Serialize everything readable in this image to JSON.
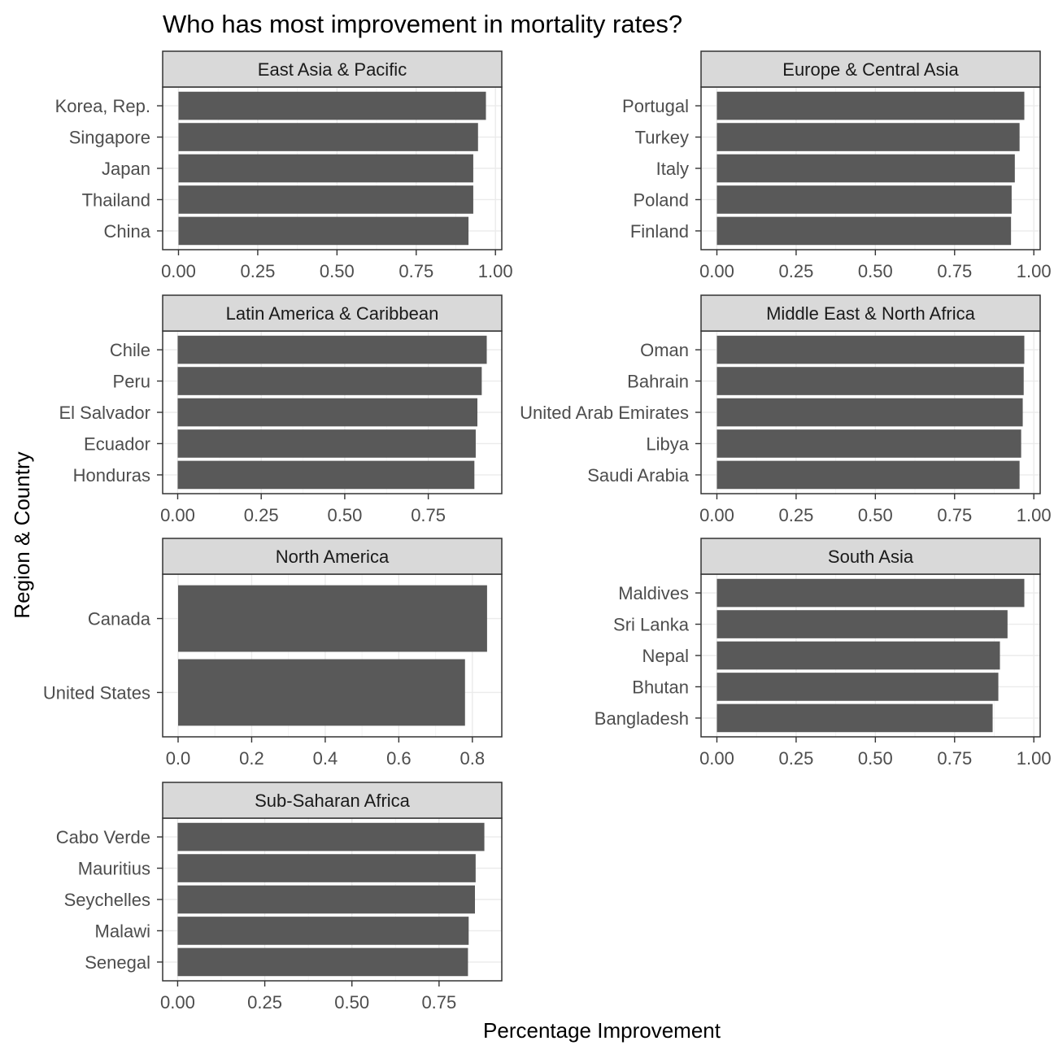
{
  "chart_data": {
    "type": "bar",
    "orientation": "horizontal",
    "title": "Who has most improvement in mortality rates?",
    "xlabel": "Percentage Improvement",
    "ylabel": "Region & Country",
    "grid": true,
    "facets": [
      {
        "name": "East Asia & Pacific",
        "categories": [
          "Korea, Rep.",
          "Singapore",
          "Japan",
          "Thailand",
          "China"
        ],
        "values": [
          0.97,
          0.945,
          0.93,
          0.93,
          0.915
        ],
        "xlim": [
          -0.05,
          1.02
        ],
        "xticks": [
          0,
          0.25,
          0.5,
          0.75,
          1.0
        ],
        "xtick_labels": [
          "0.00",
          "0.25",
          "0.50",
          "0.75",
          "1.00"
        ]
      },
      {
        "name": "Europe & Central Asia",
        "categories": [
          "Portugal",
          "Turkey",
          "Italy",
          "Poland",
          "Finland"
        ],
        "values": [
          0.97,
          0.955,
          0.94,
          0.93,
          0.928
        ],
        "xlim": [
          -0.05,
          1.02
        ],
        "xticks": [
          0,
          0.25,
          0.5,
          0.75,
          1.0
        ],
        "xtick_labels": [
          "0.00",
          "0.25",
          "0.50",
          "0.75",
          "1.00"
        ]
      },
      {
        "name": "Latin America & Caribbean",
        "categories": [
          "Chile",
          "Peru",
          "El Salvador",
          "Ecuador",
          "Honduras"
        ],
        "values": [
          0.925,
          0.91,
          0.897,
          0.892,
          0.888
        ],
        "xlim": [
          -0.045,
          0.97
        ],
        "xticks": [
          0,
          0.25,
          0.5,
          0.75
        ],
        "xtick_labels": [
          "0.00",
          "0.25",
          "0.50",
          "0.75"
        ]
      },
      {
        "name": "Middle East & North Africa",
        "categories": [
          "Oman",
          "Bahrain",
          "United Arab Emirates",
          "Libya",
          "Saudi Arabia"
        ],
        "values": [
          0.97,
          0.968,
          0.965,
          0.96,
          0.955
        ],
        "xlim": [
          -0.05,
          1.02
        ],
        "xticks": [
          0,
          0.25,
          0.5,
          0.75,
          1.0
        ],
        "xtick_labels": [
          "0.00",
          "0.25",
          "0.50",
          "0.75",
          "1.00"
        ]
      },
      {
        "name": "North America",
        "categories": [
          "Canada",
          "United States"
        ],
        "values": [
          0.84,
          0.78
        ],
        "xlim": [
          -0.042,
          0.88
        ],
        "xticks": [
          0,
          0.2,
          0.4,
          0.6,
          0.8
        ],
        "xtick_labels": [
          "0.0",
          "0.2",
          "0.4",
          "0.6",
          "0.8"
        ]
      },
      {
        "name": "South Asia",
        "categories": [
          "Maldives",
          "Sri Lanka",
          "Nepal",
          "Bhutan",
          "Bangladesh"
        ],
        "values": [
          0.97,
          0.917,
          0.893,
          0.888,
          0.87
        ],
        "xlim": [
          -0.05,
          1.02
        ],
        "xticks": [
          0,
          0.25,
          0.5,
          0.75,
          1.0
        ],
        "xtick_labels": [
          "0.00",
          "0.25",
          "0.50",
          "0.75",
          "1.00"
        ]
      },
      {
        "name": "Sub-Saharan Africa",
        "categories": [
          "Cabo Verde",
          "Mauritius",
          "Seychelles",
          "Malawi",
          "Senegal"
        ],
        "values": [
          0.88,
          0.855,
          0.853,
          0.835,
          0.833
        ],
        "xlim": [
          -0.043,
          0.93
        ],
        "xticks": [
          0,
          0.25,
          0.5,
          0.75
        ],
        "xtick_labels": [
          "0.00",
          "0.25",
          "0.50",
          "0.75"
        ]
      }
    ]
  },
  "colors": {
    "bar": "#595959",
    "strip_fill": "#d9d9d9",
    "panel_border": "#333333",
    "grid_major": "#ebebeb",
    "grid_minor": "#f5f5f5",
    "tick_text": "#4d4d4d"
  }
}
